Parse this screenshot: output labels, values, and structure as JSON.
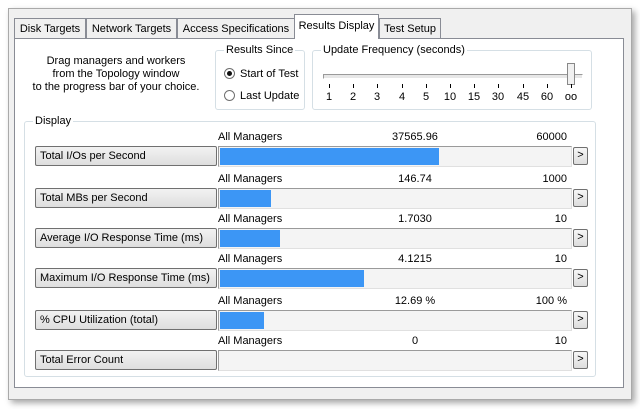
{
  "tabs": [
    {
      "label": "Disk Targets"
    },
    {
      "label": "Network Targets"
    },
    {
      "label": "Access Specifications"
    },
    {
      "label": "Results Display"
    },
    {
      "label": "Test Setup"
    }
  ],
  "hint": {
    "line1": "Drag managers and workers",
    "line2": "from the Topology window",
    "line3": "to the progress bar of your choice."
  },
  "results_since": {
    "title": "Results Since",
    "options": [
      "Start of Test",
      "Last Update"
    ],
    "selected": "Start of Test"
  },
  "update_frequency": {
    "title": "Update Frequency (seconds)",
    "ticks": [
      "1",
      "2",
      "3",
      "4",
      "5",
      "10",
      "15",
      "30",
      "45",
      "60",
      "oo"
    ],
    "selected": "oo"
  },
  "display": {
    "title": "Display",
    "arrow_label": ">",
    "metrics": [
      {
        "label": "Total I/Os per Second",
        "source": "All Managers",
        "value": "37565.96",
        "max": "60000",
        "fraction": 0.626
      },
      {
        "label": "Total MBs per Second",
        "source": "All Managers",
        "value": "146.74",
        "max": "1000",
        "fraction": 0.147
      },
      {
        "label": "Average I/O Response Time (ms)",
        "source": "All Managers",
        "value": "1.7030",
        "max": "10",
        "fraction": 0.1703
      },
      {
        "label": "Maximum I/O Response Time (ms)",
        "source": "All Managers",
        "value": "4.1215",
        "max": "10",
        "fraction": 0.41215
      },
      {
        "label": "% CPU Utilization (total)",
        "source": "All Managers",
        "value": "12.69 %",
        "max": "100 %",
        "fraction": 0.1269
      },
      {
        "label": "Total Error Count",
        "source": "All Managers",
        "value": "0",
        "max": "10",
        "fraction": 0
      }
    ]
  },
  "colors": {
    "bar": "#3c96f5"
  }
}
